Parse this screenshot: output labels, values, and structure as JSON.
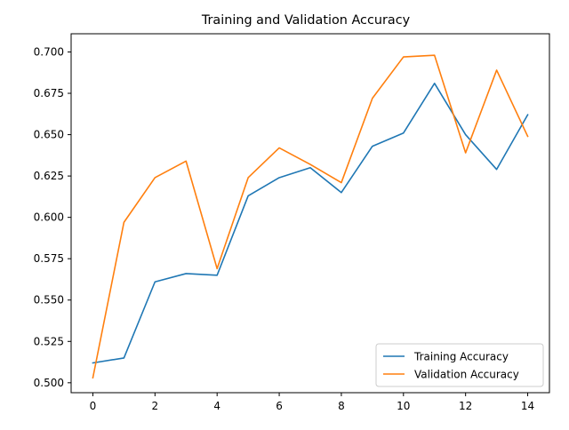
{
  "chart_data": {
    "type": "line",
    "title": "Training and Validation Accuracy",
    "xlabel": "",
    "ylabel": "",
    "xlim": [
      -0.7,
      14.7
    ],
    "ylim": [
      0.494,
      0.711
    ],
    "xticks": [
      0,
      2,
      4,
      6,
      8,
      10,
      12,
      14
    ],
    "xtick_labels": [
      "0",
      "2",
      "4",
      "6",
      "8",
      "10",
      "12",
      "14"
    ],
    "yticks": [
      0.5,
      0.525,
      0.55,
      0.575,
      0.6,
      0.625,
      0.65,
      0.675,
      0.7
    ],
    "ytick_labels": [
      "0.500",
      "0.525",
      "0.550",
      "0.575",
      "0.600",
      "0.625",
      "0.650",
      "0.675",
      "0.700"
    ],
    "grid": false,
    "legend_position": "lower right",
    "x": [
      0,
      1,
      2,
      3,
      4,
      5,
      6,
      7,
      8,
      9,
      10,
      11,
      12,
      13,
      14
    ],
    "series": [
      {
        "name": "Training Accuracy",
        "color": "#1f77b4",
        "values": [
          0.512,
          0.515,
          0.561,
          0.566,
          0.565,
          0.613,
          0.624,
          0.63,
          0.615,
          0.643,
          0.651,
          0.681,
          0.65,
          0.629,
          0.662
        ]
      },
      {
        "name": "Validation Accuracy",
        "color": "#ff7f0e",
        "values": [
          0.503,
          0.597,
          0.624,
          0.634,
          0.569,
          0.624,
          0.642,
          0.632,
          0.621,
          0.672,
          0.697,
          0.698,
          0.639,
          0.689,
          0.649
        ]
      }
    ]
  }
}
